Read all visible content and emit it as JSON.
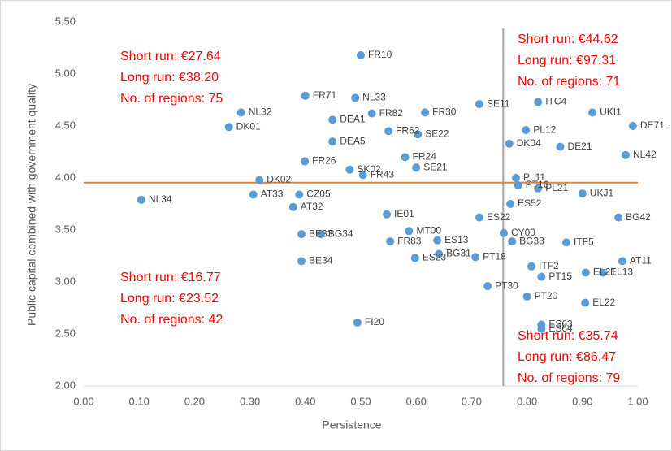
{
  "chart_data": {
    "type": "scatter",
    "xlabel": "Persistence",
    "ylabel": "Public capital combined with government quality",
    "xlim": [
      0,
      1
    ],
    "ylim": [
      2,
      5.5
    ],
    "xticks": [
      {
        "value": 0,
        "label": "0.00"
      },
      {
        "value": 0.1,
        "label": "0.10"
      },
      {
        "value": 0.2,
        "label": "0.20"
      },
      {
        "value": 0.3,
        "label": "0.30"
      },
      {
        "value": 0.4,
        "label": "0.40"
      },
      {
        "value": 0.5,
        "label": "0.50"
      },
      {
        "value": 0.6,
        "label": "0.60"
      },
      {
        "value": 0.7,
        "label": "0.70"
      },
      {
        "value": 0.8,
        "label": "0.80"
      },
      {
        "value": 0.9,
        "label": "0.90"
      },
      {
        "value": 1,
        "label": "1.00"
      }
    ],
    "yticks": [
      {
        "value": 2,
        "label": "2.00"
      },
      {
        "value": 2.5,
        "label": "2.50"
      },
      {
        "value": 3,
        "label": "3.00"
      },
      {
        "value": 3.5,
        "label": "3.50"
      },
      {
        "value": 4,
        "label": "4.00"
      },
      {
        "value": 4.5,
        "label": "4.50"
      },
      {
        "value": 5,
        "label": "5.00"
      },
      {
        "value": 5.5,
        "label": "5.50"
      }
    ],
    "reference_lines": [
      {
        "axis": "x",
        "value": 0.757,
        "color": "#a6a6a6"
      },
      {
        "axis": "y",
        "value": 3.955,
        "color": "#ed7d31"
      }
    ],
    "series": [
      {
        "color": "#5b9bd5",
        "labels": [
          "FR10",
          "FR71",
          "NL33",
          "NL32",
          "DK01",
          "NL34",
          "FI20",
          "SE11",
          "ITC4",
          "UKI1",
          "DE71",
          "NL42",
          "AT11",
          "EL13",
          "EL21",
          "EL22",
          "PT20",
          "PT30",
          "PT15",
          "ITF2",
          "ES63",
          "ES64",
          "BE34",
          "ES23",
          "BG31",
          "PT18",
          "MT00",
          "FR83",
          "IE01",
          "ES13",
          "BG33",
          "CY00",
          "BE33",
          "BG34",
          "AT32",
          "AT33",
          "CZ05",
          "DK02",
          "FR26",
          "DEA1",
          "FR82",
          "FR30",
          "SE22",
          "FR43",
          "PL12",
          "DK04",
          "PT16",
          "ES22",
          "ITF5",
          "BG42",
          "DEA5",
          "SE21",
          "FR24",
          "PL11",
          "DE21",
          "UKJ1",
          "ES52",
          "PL21",
          "FR62",
          "SK02"
        ],
        "x": [
          0.5,
          0.4,
          0.49,
          0.284,
          0.262,
          0.104,
          0.494,
          0.714,
          0.82,
          0.918,
          0.991,
          0.978,
          0.972,
          0.937,
          0.906,
          0.905,
          0.8,
          0.729,
          0.826,
          0.808,
          0.826,
          0.826,
          0.393,
          0.598,
          0.641,
          0.707,
          0.587,
          0.553,
          0.547,
          0.638,
          0.773,
          0.758,
          0.393,
          0.428,
          0.378,
          0.306,
          0.389,
          0.317,
          0.399,
          0.449,
          0.52,
          0.616,
          0.603,
          0.504,
          0.798,
          0.768,
          0.784,
          0.714,
          0.871,
          0.965,
          0.449,
          0.6,
          0.58,
          0.78,
          0.86,
          0.9,
          0.77,
          0.82,
          0.55,
          0.48
        ],
        "values": [
          5.18,
          4.79,
          4.77,
          4.63,
          4.49,
          3.79,
          2.61,
          4.71,
          4.73,
          4.63,
          4.5,
          4.22,
          3.2,
          3.09,
          3.09,
          2.8,
          2.86,
          2.96,
          3.05,
          3.15,
          2.59,
          2.55,
          3.2,
          3.23,
          3.27,
          3.24,
          3.49,
          3.39,
          3.65,
          3.4,
          3.39,
          3.47,
          3.46,
          3.46,
          3.72,
          3.84,
          3.84,
          3.98,
          4.16,
          4.56,
          4.62,
          4.63,
          4.42,
          4.03,
          4.46,
          4.33,
          3.93,
          3.62,
          3.38,
          3.62,
          4.35,
          4.1,
          4.2,
          4.0,
          4.3,
          3.85,
          3.75,
          3.9,
          4.45,
          4.08
        ]
      }
    ],
    "annotations": [
      [
        "Short run: €27.64",
        "Long run: €38.20",
        "No. of regions: 75"
      ],
      [
        "Short run: €44.62",
        "Long run: €97.31",
        "No. of regions: 71"
      ],
      [
        "Short run: €16.77",
        "Long run: €23.52",
        "No. of regions: 42"
      ],
      [
        "Short run: €35.74",
        "Long run: €86.47",
        "No. of regions: 79"
      ]
    ]
  }
}
